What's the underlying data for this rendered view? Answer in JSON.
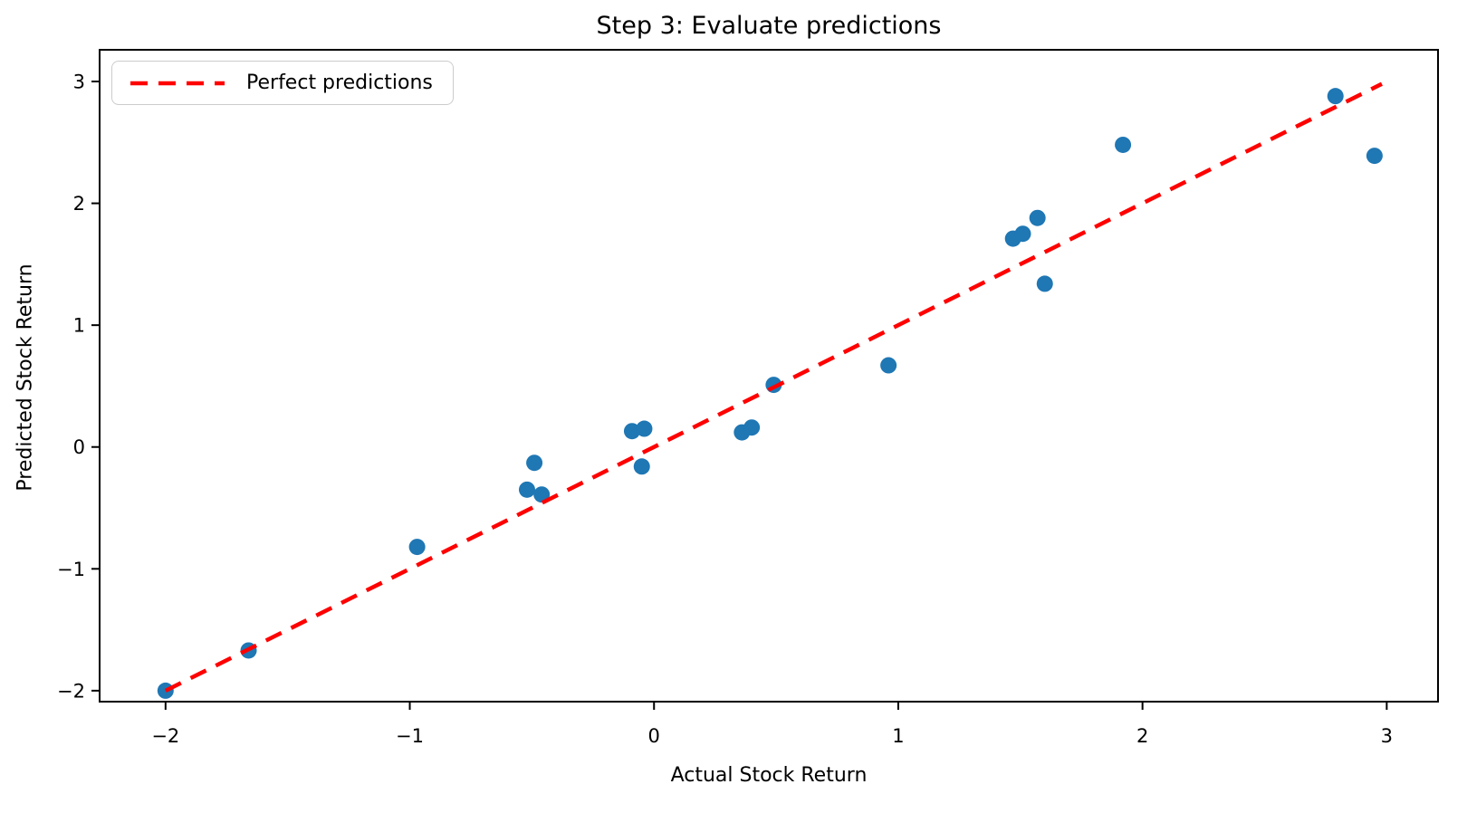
{
  "chart_data": {
    "type": "scatter",
    "title": "Step 3: Evaluate predictions",
    "xlabel": "Actual Stock Return",
    "ylabel": "Predicted Stock Return",
    "xlim": [
      -2.27,
      3.21
    ],
    "ylim": [
      -2.09,
      3.26
    ],
    "xticks": [
      -2,
      -1,
      0,
      1,
      2,
      3
    ],
    "yticks": [
      -2,
      -1,
      0,
      1,
      2,
      3
    ],
    "grid": false,
    "legend_position": "upper-left",
    "legend": [
      {
        "label": "Perfect predictions",
        "style": "dashed",
        "color": "#ff0000"
      }
    ],
    "series": [
      {
        "name": "predictions",
        "type": "scatter",
        "color": "#1f77b4",
        "marker_radius_px": 9,
        "points": [
          [
            -2.0,
            -2.0
          ],
          [
            -1.66,
            -1.67
          ],
          [
            -0.97,
            -0.82
          ],
          [
            -0.52,
            -0.35
          ],
          [
            -0.49,
            -0.13
          ],
          [
            -0.46,
            -0.39
          ],
          [
            -0.09,
            0.13
          ],
          [
            -0.05,
            -0.16
          ],
          [
            -0.04,
            0.15
          ],
          [
            0.36,
            0.12
          ],
          [
            0.4,
            0.16
          ],
          [
            0.49,
            0.51
          ],
          [
            0.96,
            0.67
          ],
          [
            1.47,
            1.71
          ],
          [
            1.51,
            1.75
          ],
          [
            1.57,
            1.88
          ],
          [
            1.6,
            1.34
          ],
          [
            1.92,
            2.48
          ],
          [
            2.79,
            2.88
          ],
          [
            2.95,
            2.39
          ]
        ]
      },
      {
        "name": "perfect-prediction-line",
        "type": "line",
        "color": "#ff0000",
        "dashed": true,
        "points": [
          [
            -2.0,
            -2.0
          ],
          [
            2.98,
            2.98
          ]
        ]
      }
    ]
  }
}
